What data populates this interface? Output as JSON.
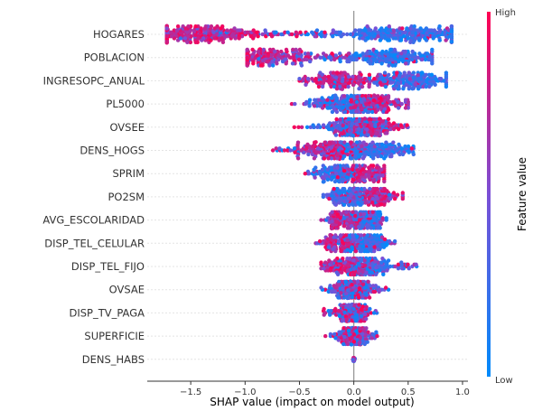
{
  "chart_data": {
    "type": "scatter",
    "subtype": "beeswarm",
    "xlabel": "SHAP value (impact on model output)",
    "xlim": [
      -1.9,
      1.05
    ],
    "x_ticks": [
      -1.5,
      -1.0,
      -0.5,
      0.0,
      0.5,
      1.0
    ],
    "x_tick_labels": [
      "−1.5",
      "−1.0",
      "−0.5",
      "0.0",
      "0.5",
      "1.0"
    ],
    "colorbar": {
      "label": "Feature value",
      "high_label": "High",
      "low_label": "Low",
      "high_color": "#ff0052",
      "low_color": "#008bfb"
    },
    "features": [
      {
        "name": "HOGARES",
        "min": -1.72,
        "max": 0.9,
        "mode": 0.25,
        "low_mode": 0.4,
        "high_mode": -1.4
      },
      {
        "name": "POBLACION",
        "min": -0.98,
        "max": 0.72,
        "mode": 0.2,
        "low_mode": 0.3,
        "high_mode": -0.8
      },
      {
        "name": "INGRESOPC_ANUAL",
        "min": -0.5,
        "max": 0.85,
        "mode": 0.05,
        "low_mode": 0.5,
        "high_mode": -0.1
      },
      {
        "name": "PL5000",
        "min": -0.6,
        "max": 0.5,
        "mode": 0.18,
        "low_mode": -0.1,
        "high_mode": 0.18
      },
      {
        "name": "OVSEE",
        "min": -0.55,
        "max": 0.55,
        "mode": 0.0,
        "low_mode": 0.0,
        "high_mode": 0.1
      },
      {
        "name": "DENS_HOGS",
        "min": -0.78,
        "max": 0.55,
        "mode": 0.05,
        "low_mode": 0.15,
        "high_mode": -0.2
      },
      {
        "name": "SPRIM",
        "min": -0.45,
        "max": 0.28,
        "mode": 0.05,
        "low_mode": -0.15,
        "high_mode": 0.1
      },
      {
        "name": "PO2SM",
        "min": -0.28,
        "max": 0.45,
        "mode": 0.1,
        "low_mode": -0.05,
        "high_mode": 0.2
      },
      {
        "name": "AVG_ESCOLARIDAD",
        "min": -0.3,
        "max": 0.3,
        "mode": 0.05,
        "low_mode": 0.1,
        "high_mode": -0.1
      },
      {
        "name": "DISP_TEL_CELULAR",
        "min": -0.35,
        "max": 0.38,
        "mode": 0.0,
        "low_mode": 0.1,
        "high_mode": -0.1
      },
      {
        "name": "DISP_TEL_FIJO",
        "min": -0.3,
        "max": 0.58,
        "mode": 0.0,
        "low_mode": 0.15,
        "high_mode": -0.05
      },
      {
        "name": "OVSAE",
        "min": -0.35,
        "max": 0.32,
        "mode": 0.0,
        "low_mode": 0.0,
        "high_mode": 0.0
      },
      {
        "name": "DISP_TV_PAGA",
        "min": -0.28,
        "max": 0.22,
        "mode": 0.0,
        "low_mode": 0.0,
        "high_mode": 0.0
      },
      {
        "name": "SUPERFICIE",
        "min": -0.28,
        "max": 0.22,
        "mode": 0.0,
        "low_mode": 0.0,
        "high_mode": 0.0
      },
      {
        "name": "DENS_HABS",
        "min": -0.01,
        "max": 0.01,
        "mode": 0.0,
        "low_mode": 0.0,
        "high_mode": 0.0
      }
    ]
  }
}
